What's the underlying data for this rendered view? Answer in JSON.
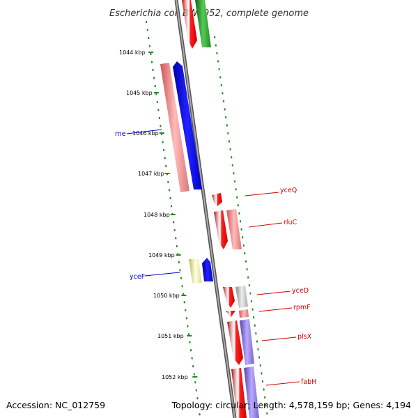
{
  "title": "Escherichia coli BW2952, complete genome",
  "accession": "Accession: NC_012759",
  "topology": "Topology: circular; Length: 4,578,159 bp; Genes: 4,194",
  "scale_labels": [
    "1044 kbp",
    "1045 kbp",
    "1046 kbp",
    "1047 kbp",
    "1048 kbp",
    "1049 kbp",
    "1050 kbp",
    "1051 kbp",
    "1052 kbp"
  ],
  "gene_labels": [
    {
      "text": "rne",
      "color": "#0000cc"
    },
    {
      "text": "yceF",
      "color": "#0000cc"
    },
    {
      "text": "yceQ",
      "color": "#cc0000"
    },
    {
      "text": "rluC",
      "color": "#cc0000"
    },
    {
      "text": "yceD",
      "color": "#cc0000"
    },
    {
      "text": "rpmF",
      "color": "#cc0000"
    },
    {
      "text": "plsX",
      "color": "#cc0000"
    },
    {
      "text": "fabH",
      "color": "#cc0000"
    }
  ],
  "colors": {
    "backbone": "#888888",
    "forward_red": "#ee0000",
    "forward_blue": "#0000ee",
    "light_red": "#ee8888",
    "green": "#229922",
    "yellow": "#eeeeaa",
    "grey": "#bbbbbb",
    "purple": "#8877dd",
    "tick_green": "#228822"
  }
}
